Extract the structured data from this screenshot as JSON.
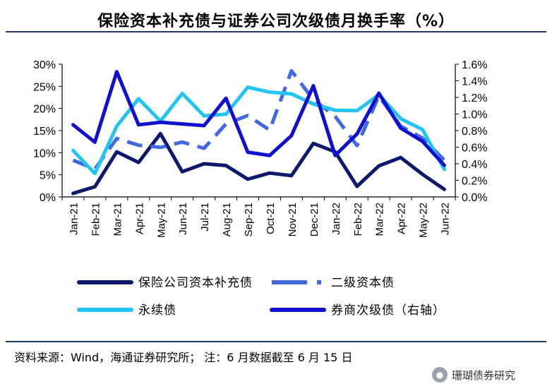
{
  "title": "保险资本补充债与证券公司次级债月换手率（%）",
  "source": "资料来源：Wind，海通证券研究所； 注：6 月数据截至 6 月 15 日",
  "watermark": {
    "text": "珊瑚债券研究",
    "icon": "wechat-icon"
  },
  "chart_data": {
    "type": "line",
    "categories": [
      "Jan-21",
      "Feb-21",
      "Mar-21",
      "Apr-21",
      "May-21",
      "Jun-21",
      "Jul-21",
      "Aug-21",
      "Sep-21",
      "Oct-21",
      "Nov-21",
      "Dec-21",
      "Jan-22",
      "Feb-22",
      "Mar-22",
      "Apr-22",
      "May-22",
      "Jun-22"
    ],
    "left_axis": {
      "ylim": [
        0,
        30
      ],
      "ticks": [
        "0%",
        "5%",
        "10%",
        "15%",
        "20%",
        "25%",
        "30%"
      ]
    },
    "right_axis": {
      "ylim": [
        0,
        1.6
      ],
      "ticks": [
        "0.0%",
        "0.2%",
        "0.4%",
        "0.6%",
        "0.8%",
        "1.0%",
        "1.2%",
        "1.4%",
        "1.6%"
      ]
    },
    "series": [
      {
        "name": "保险公司资本补充债",
        "axis": "left",
        "color": "#0d1a6b",
        "style": "solid",
        "values": [
          0.8,
          2.3,
          10.2,
          7.8,
          14.3,
          5.7,
          7.5,
          7.1,
          4.0,
          5.4,
          4.8,
          12.1,
          10.2,
          2.4,
          7.0,
          8.9,
          5.1,
          1.7
        ]
      },
      {
        "name": "二级资本债",
        "axis": "left",
        "color": "#4169e1",
        "style": "dashed",
        "values": [
          8.3,
          6.3,
          13.2,
          11.7,
          11.2,
          12.4,
          11.0,
          16.5,
          18.4,
          15.1,
          28.5,
          22.0,
          18.2,
          11.6,
          22.8,
          16.0,
          13.3,
          8.3
        ]
      },
      {
        "name": "永续债",
        "axis": "left",
        "color": "#22c5f0",
        "style": "solid",
        "values": [
          10.5,
          5.3,
          16.0,
          22.2,
          17.1,
          23.4,
          18.3,
          18.7,
          24.8,
          23.7,
          23.3,
          21.0,
          19.6,
          19.5,
          23.1,
          17.7,
          15.2,
          6.2
        ]
      },
      {
        "name": "券商次级债（右轴）",
        "axis": "right",
        "color": "#1010d0",
        "style": "solid",
        "values": [
          0.87,
          0.66,
          1.51,
          0.87,
          0.9,
          0.88,
          0.86,
          1.19,
          0.54,
          0.5,
          0.74,
          1.34,
          0.5,
          0.76,
          1.25,
          0.83,
          0.67,
          0.38
        ]
      }
    ],
    "legend": [
      {
        "label": "保险公司资本补充债",
        "style": "solid",
        "color": "#0d1a6b"
      },
      {
        "label": "二级资本债",
        "style": "dashed",
        "color": "#4169e1"
      },
      {
        "label": "永续债",
        "style": "solid",
        "color": "#22c5f0"
      },
      {
        "label": "券商次级债（右轴）",
        "style": "solid",
        "color": "#1010d0"
      }
    ]
  }
}
